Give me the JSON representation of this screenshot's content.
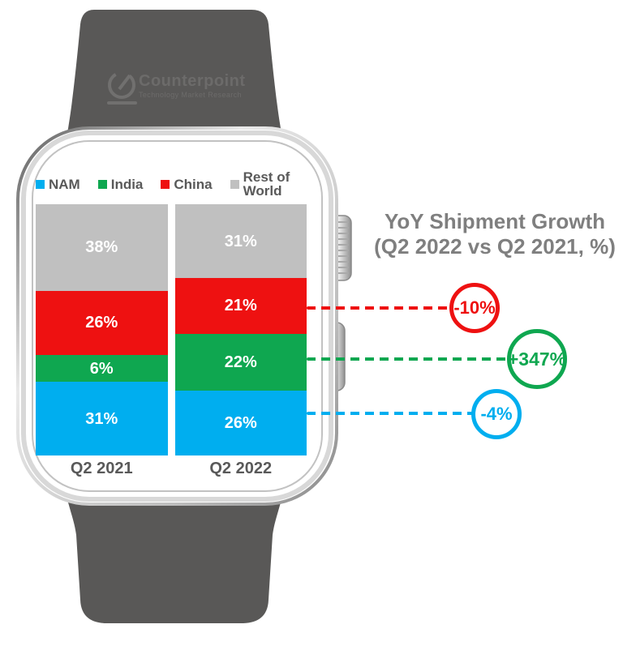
{
  "watch": {
    "band_color": "#595857",
    "logo": {
      "brand": "Counterpoint",
      "tagline": "Technology Market Research"
    }
  },
  "chart_data": {
    "type": "bar",
    "stacked": true,
    "unit": "%",
    "value_suffix": "%",
    "legend_position": "top",
    "categories": [
      "Q2 2021",
      "Q2 2022"
    ],
    "series": [
      {
        "name": "NAM",
        "color": "#00AEEF",
        "values": [
          31,
          26
        ]
      },
      {
        "name": "India",
        "color": "#0FA750",
        "values": [
          6,
          22
        ]
      },
      {
        "name": "China",
        "color": "#EE1111",
        "values": [
          26,
          21
        ]
      },
      {
        "name": "Rest of World",
        "color": "#C0C0C0",
        "values": [
          38,
          31
        ]
      }
    ],
    "stack_order_top_to_bottom": [
      "Rest of World",
      "China",
      "India",
      "NAM"
    ]
  },
  "annotations": {
    "title_line1": "YoY Shipment Growth",
    "title_line2": "(Q2 2022 vs Q2 2021, %)",
    "callouts": [
      {
        "label": "-10%",
        "series": "China",
        "color": "#EE1111"
      },
      {
        "label": "+347%",
        "series": "India",
        "color": "#0FA750"
      },
      {
        "label": "-4%",
        "series": "NAM",
        "color": "#00AEEF"
      }
    ]
  }
}
